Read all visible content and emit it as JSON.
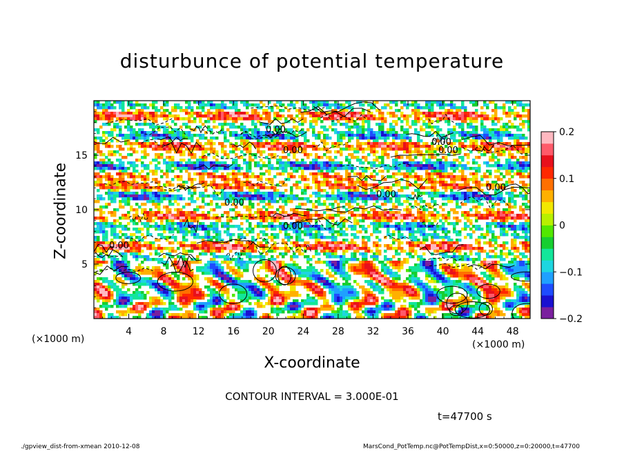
{
  "chart_data": {
    "type": "heatmap",
    "title": "disturbunce of potential temperature",
    "xlabel": "X-coordinate",
    "ylabel": "Z-coordinate",
    "x_unit": "(×1000 m)",
    "y_unit": "(×1000 m)",
    "xlim": [
      0,
      50
    ],
    "ylim": [
      0,
      20
    ],
    "x_ticks": [
      4,
      8,
      12,
      16,
      20,
      24,
      28,
      32,
      36,
      40,
      44,
      48
    ],
    "y_ticks": [
      5,
      10,
      15
    ],
    "colorbar": {
      "range": [
        -0.2,
        0.2
      ],
      "tick_labels": [
        "0.2",
        "0.1",
        "0",
        "−0.1",
        "−0.2"
      ],
      "tick_values": [
        0.2,
        0.1,
        0,
        -0.1,
        -0.2
      ],
      "colors": [
        "#7a1f9e",
        "#1a10d0",
        "#1e4cff",
        "#1fa0ff",
        "#1ed6e0",
        "#12e69a",
        "#16cf30",
        "#52e800",
        "#b8f000",
        "#f2e800",
        "#ffb000",
        "#ff7000",
        "#ff2800",
        "#e8101c",
        "#ff5a6a",
        "#ffb8c0"
      ]
    },
    "contour_labels": [
      "0.00",
      "0.00",
      "0.00",
      "0.00",
      "0.00",
      "0.00",
      "0.00",
      "0.00",
      "0.00"
    ],
    "contour_interval": "CONTOUR INTERVAL = 3.000E-01",
    "time": "t=47700 s",
    "grid": false
  },
  "footer": {
    "left": "./gpview_dist-from-xmean  2010-12-08",
    "right": "MarsCond_PotTemp.nc@PotTempDist,x=0:50000,z=0:20000,t=47700"
  }
}
